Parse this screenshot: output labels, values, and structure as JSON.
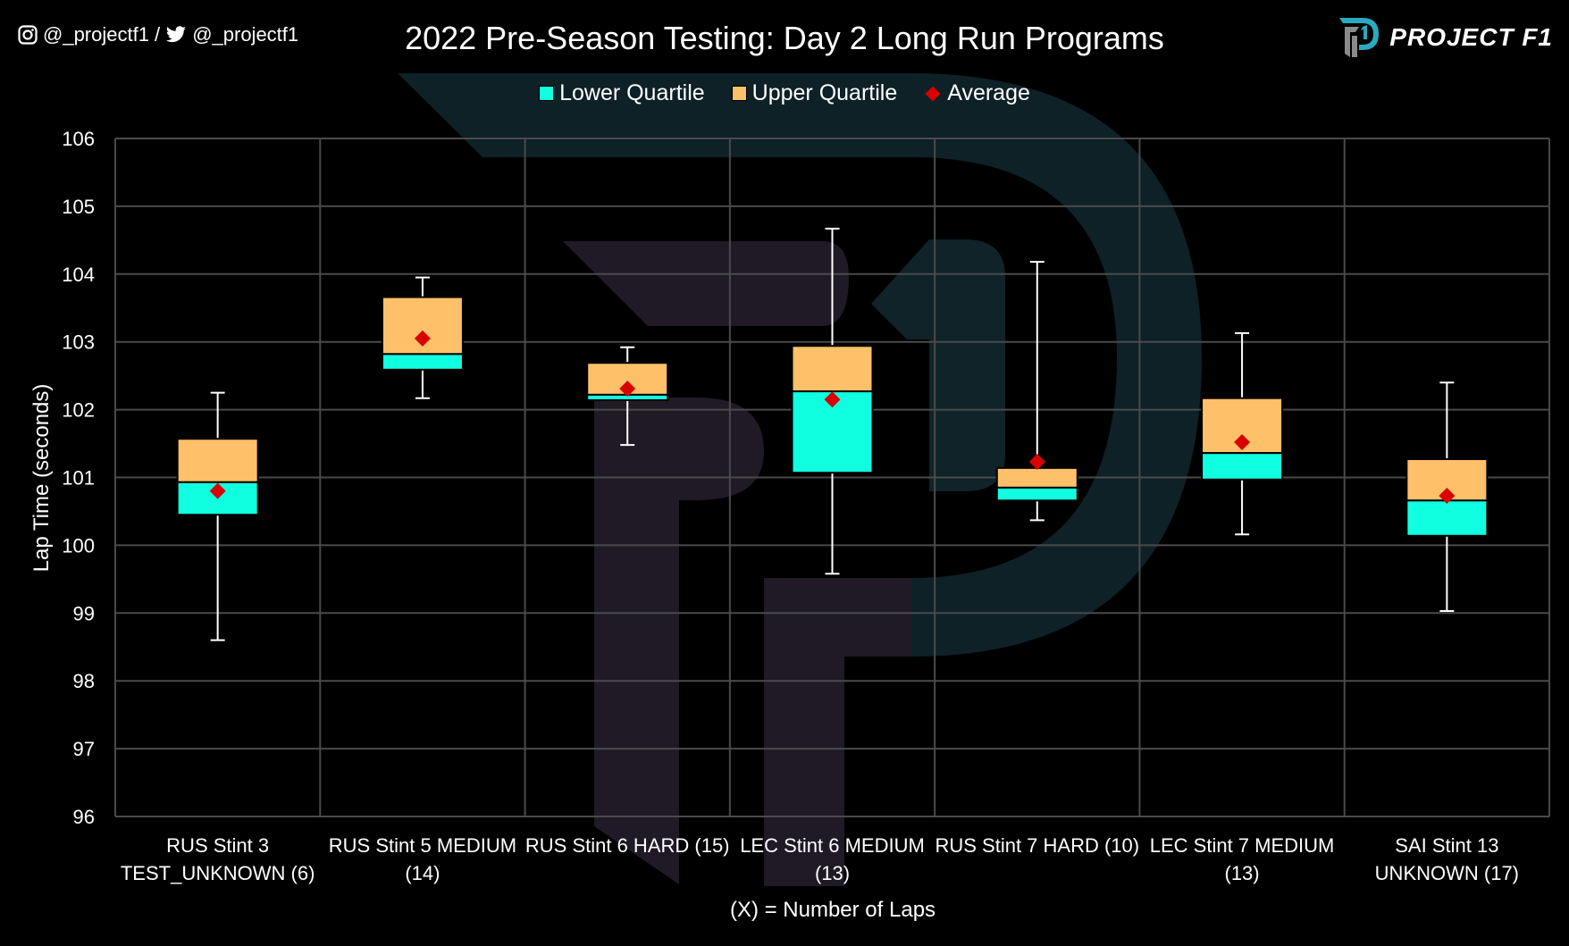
{
  "header": {
    "social_instagram": "@_projectf1 /",
    "social_twitter": "@_projectf1",
    "brand": "PROJECT F1",
    "icons": [
      "instagram-icon",
      "twitter-icon",
      "project-f1-logo"
    ]
  },
  "colors": {
    "lower_quartile": "#10ffe0",
    "upper_quartile": "#ffc06a",
    "average": "#d90000",
    "whisker": "#ffffff",
    "grid": "#4a4a4a",
    "background": "#000000"
  },
  "chart_data": {
    "type": "boxplot",
    "title": "2022 Pre-Season Testing: Day 2 Long Run Programs",
    "xlabel": "(X) = Number of Laps",
    "ylabel": "Lap Time (seconds)",
    "ylim": [
      96,
      106
    ],
    "yticks": [
      "96",
      "97",
      "98",
      "99",
      "100",
      "101",
      "102",
      "103",
      "104",
      "105",
      "106"
    ],
    "grid": true,
    "legend_position": "top",
    "legend": [
      "Lower Quartile",
      "Upper Quartile",
      "Average"
    ],
    "categories": [
      {
        "line1": "RUS Stint 3",
        "line2": "TEST_UNKNOWN (6)"
      },
      {
        "line1": "RUS Stint 5 MEDIUM",
        "line2": "(14)"
      },
      {
        "line1": "RUS Stint 6 HARD (15)",
        "line2": ""
      },
      {
        "line1": "LEC Stint 6 MEDIUM",
        "line2": "(13)"
      },
      {
        "line1": "RUS Stint 7 HARD (10)",
        "line2": ""
      },
      {
        "line1": "LEC Stint 7 MEDIUM",
        "line2": "(13)"
      },
      {
        "line1": "SAI Stint 13",
        "line2": "UNKNOWN (17)"
      }
    ],
    "series": [
      {
        "name": "min",
        "values": [
          98.6,
          102.17,
          101.48,
          99.58,
          100.37,
          100.16,
          99.03
        ]
      },
      {
        "name": "q1",
        "values": [
          100.45,
          102.59,
          102.14,
          101.07,
          100.66,
          100.97,
          100.14
        ]
      },
      {
        "name": "median",
        "values": [
          100.93,
          102.82,
          102.22,
          102.27,
          100.85,
          101.36,
          100.66
        ]
      },
      {
        "name": "q3",
        "values": [
          101.57,
          103.66,
          102.69,
          102.94,
          101.14,
          102.17,
          101.27
        ]
      },
      {
        "name": "max",
        "values": [
          102.25,
          103.95,
          102.92,
          104.67,
          104.18,
          103.13,
          102.4
        ]
      },
      {
        "name": "average",
        "values": [
          100.8,
          103.05,
          102.31,
          102.15,
          101.23,
          101.52,
          100.73
        ]
      }
    ]
  }
}
